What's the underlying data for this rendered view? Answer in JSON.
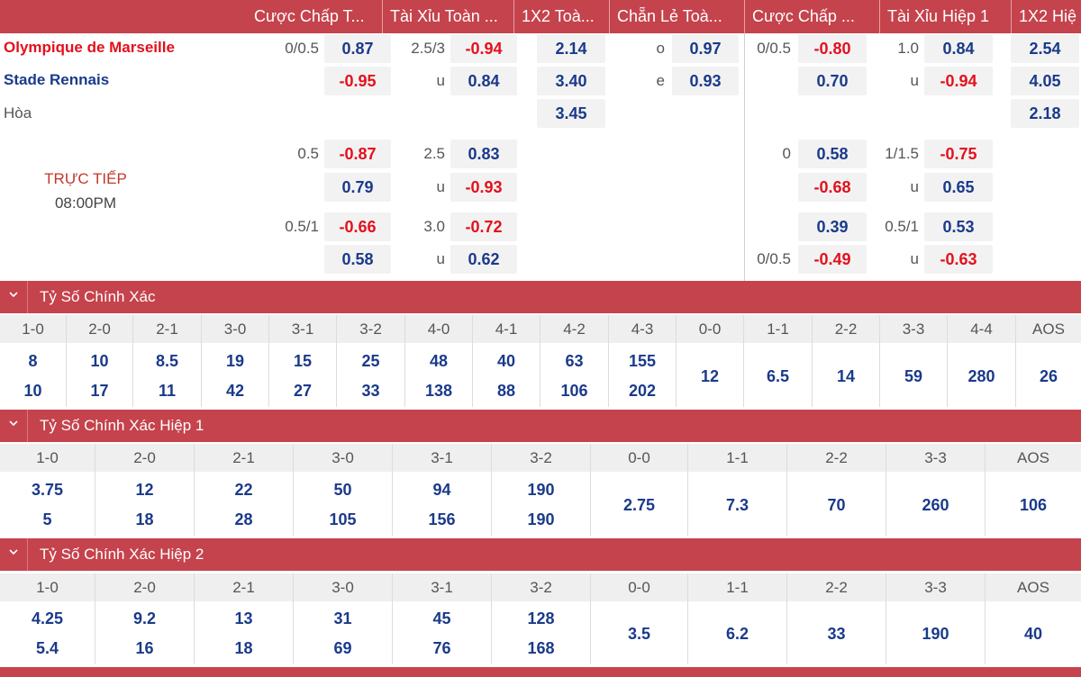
{
  "tabs": [
    "Cược Chấp T...",
    "Tài Xỉu Toàn ...",
    "1X2 Toà...",
    "Chẵn Lẻ Toà...",
    "Cược Chấp ...",
    "Tài Xỉu Hiệp 1",
    "1X2 Hiệ"
  ],
  "match": {
    "home": "Olympique de Marseille",
    "away": "Stade Rennais",
    "draw": "Hòa",
    "status": "TRỰC TIẾP",
    "time": "08:00PM"
  },
  "main_line": {
    "ah_line": "0/0.5",
    "ah_home": "0.87",
    "ah_away": "-0.95",
    "ou_line": "2.5/3",
    "ou_over": "-0.94",
    "ou_u_label": "u",
    "ou_under": "0.84",
    "x12_home": "2.14",
    "x12_away": "3.40",
    "x12_draw": "3.45",
    "oe_o_label": "o",
    "oe_odd": "0.97",
    "oe_e_label": "e",
    "oe_even": "0.93",
    "h1_ah_line": "0/0.5",
    "h1_ah_home": "-0.80",
    "h1_ah_away": "0.70",
    "h1_ou_line": "1.0",
    "h1_ou_over": "0.84",
    "h1_ou_u_label": "u",
    "h1_ou_under": "-0.94",
    "h1_x12_home": "2.54",
    "h1_x12_away": "4.05",
    "h1_x12_draw": "2.18"
  },
  "alt_line_1": {
    "ah_line": "0.5",
    "ah_home": "-0.87",
    "ah_away": "0.79",
    "ou_line": "2.5",
    "ou_over": "0.83",
    "ou_u_label": "u",
    "ou_under": "-0.93",
    "h1_ah_line": "0",
    "h1_ah_home": "0.58",
    "h1_ah_away": "-0.68",
    "h1_ou_line": "1/1.5",
    "h1_ou_over": "-0.75",
    "h1_ou_u_label": "u",
    "h1_ou_under": "0.65"
  },
  "alt_line_2": {
    "ah_line": "0.5/1",
    "ah_home": "-0.66",
    "ah_away": "0.58",
    "ou_line": "3.0",
    "ou_over": "-0.72",
    "ou_u_label": "u",
    "ou_under": "0.62",
    "h1_ah_home": "0.39",
    "h1_ah_line2": "0/0.5",
    "h1_ah_away": "-0.49",
    "h1_ou_line": "0.5/1",
    "h1_ou_over": "0.53",
    "h1_ou_u_label": "u",
    "h1_ou_under": "-0.63"
  },
  "correct_score": {
    "title": "Tỷ Số Chính Xác",
    "headers": [
      "1-0",
      "2-0",
      "2-1",
      "3-0",
      "3-1",
      "3-2",
      "4-0",
      "4-1",
      "4-2",
      "4-3",
      "0-0",
      "1-1",
      "2-2",
      "3-3",
      "4-4",
      "AOS"
    ],
    "home": [
      "8",
      "10",
      "8.5",
      "19",
      "15",
      "25",
      "48",
      "40",
      "63",
      "155"
    ],
    "away": [
      "10",
      "17",
      "11",
      "42",
      "27",
      "33",
      "138",
      "88",
      "106",
      "202"
    ],
    "single": [
      "12",
      "6.5",
      "14",
      "59",
      "280",
      "26"
    ]
  },
  "correct_score_h1": {
    "title": "Tỷ Số Chính Xác Hiệp 1",
    "headers": [
      "1-0",
      "2-0",
      "2-1",
      "3-0",
      "3-1",
      "3-2",
      "0-0",
      "1-1",
      "2-2",
      "3-3",
      "AOS"
    ],
    "home": [
      "3.75",
      "12",
      "22",
      "50",
      "94",
      "190"
    ],
    "away": [
      "5",
      "18",
      "28",
      "105",
      "156",
      "190"
    ],
    "single": [
      "2.75",
      "7.3",
      "70",
      "260",
      "106"
    ]
  },
  "correct_score_h2": {
    "title": "Tỷ Số Chính Xác Hiệp 2",
    "headers": [
      "1-0",
      "2-0",
      "2-1",
      "3-0",
      "3-1",
      "3-2",
      "0-0",
      "1-1",
      "2-2",
      "3-3",
      "AOS"
    ],
    "home": [
      "4.25",
      "9.2",
      "13",
      "31",
      "45",
      "128"
    ],
    "away": [
      "5.4",
      "16",
      "18",
      "69",
      "76",
      "168"
    ],
    "single": [
      "3.5",
      "6.2",
      "33",
      "190",
      "40"
    ]
  },
  "colors": {
    "header_bg": "#c5434c",
    "positive": "#1a3a8a",
    "negative": "#e3101c"
  }
}
